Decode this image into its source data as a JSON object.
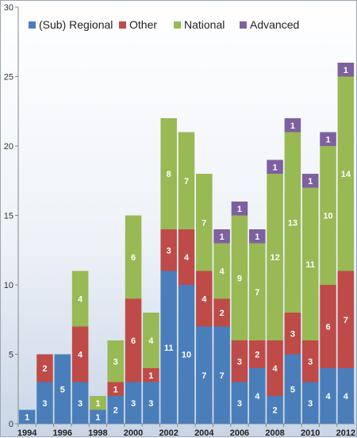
{
  "chart_data": {
    "type": "bar",
    "stacked": true,
    "categories": [
      "1994",
      "1995",
      "1996",
      "1997",
      "1998",
      "1999",
      "2000",
      "2001",
      "2002",
      "2003",
      "2004",
      "2005",
      "2006",
      "2007",
      "2008",
      "2009",
      "2010",
      "2011",
      "2012"
    ],
    "x_tick_labels": [
      "1994",
      "1996",
      "1998",
      "2000",
      "2002",
      "2004",
      "2006",
      "2008",
      "2010",
      "2012"
    ],
    "series": [
      {
        "name": "(Sub) Regional",
        "color": "#4a7ebb",
        "values": [
          1,
          3,
          5,
          3,
          1,
          2,
          3,
          3,
          11,
          10,
          7,
          7,
          3,
          4,
          2,
          5,
          3,
          4,
          4
        ]
      },
      {
        "name": "Other",
        "color": "#be4b48",
        "values": [
          0,
          2,
          0,
          4,
          0,
          1,
          6,
          1,
          3,
          4,
          4,
          2,
          3,
          2,
          4,
          3,
          3,
          6,
          7
        ]
      },
      {
        "name": "National",
        "color": "#98b954",
        "values": [
          0,
          0,
          0,
          4,
          1,
          3,
          6,
          4,
          8,
          7,
          7,
          4,
          9,
          7,
          12,
          13,
          11,
          10,
          14
        ]
      },
      {
        "name": "Advanced",
        "color": "#7d60a0",
        "values": [
          0,
          0,
          0,
          0,
          0,
          0,
          0,
          0,
          0,
          0,
          0,
          1,
          1,
          1,
          1,
          1,
          1,
          1,
          1
        ]
      }
    ],
    "ylim": [
      0,
      30
    ],
    "y_ticks": [
      0,
      5,
      10,
      15,
      20,
      25,
      30
    ],
    "grid": false,
    "legend": "top"
  }
}
